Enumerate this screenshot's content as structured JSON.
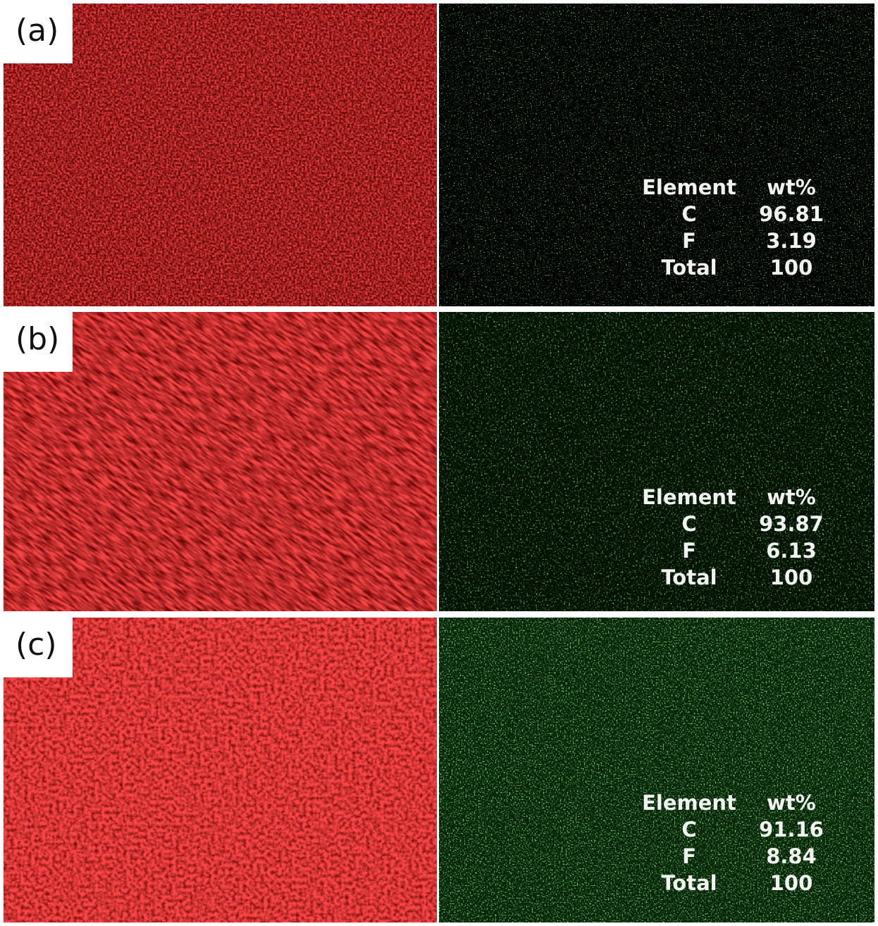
{
  "panels": [
    {
      "label": "(a)",
      "table": {
        "header": [
          "Element",
          "wt%"
        ],
        "rows": [
          [
            "C",
            "96.81"
          ],
          [
            "F",
            "3.19"
          ],
          [
            "Total",
            "100"
          ]
        ]
      }
    },
    {
      "label": "(b)",
      "table": {
        "header": [
          "Element",
          "wt%"
        ],
        "rows": [
          [
            "C",
            "93.87"
          ],
          [
            "F",
            "6.13"
          ],
          [
            "Total",
            "100"
          ]
        ]
      }
    },
    {
      "label": "(c)",
      "table": {
        "header": [
          "Element",
          "wt%"
        ],
        "rows": [
          [
            "C",
            "91.16"
          ],
          [
            "F",
            "8.84"
          ],
          [
            "Total",
            "100"
          ]
        ]
      }
    }
  ],
  "colors": {
    "carbon_map": "#e01010",
    "fluorine_map": "#2ee82e",
    "background_dark": "#000000"
  }
}
